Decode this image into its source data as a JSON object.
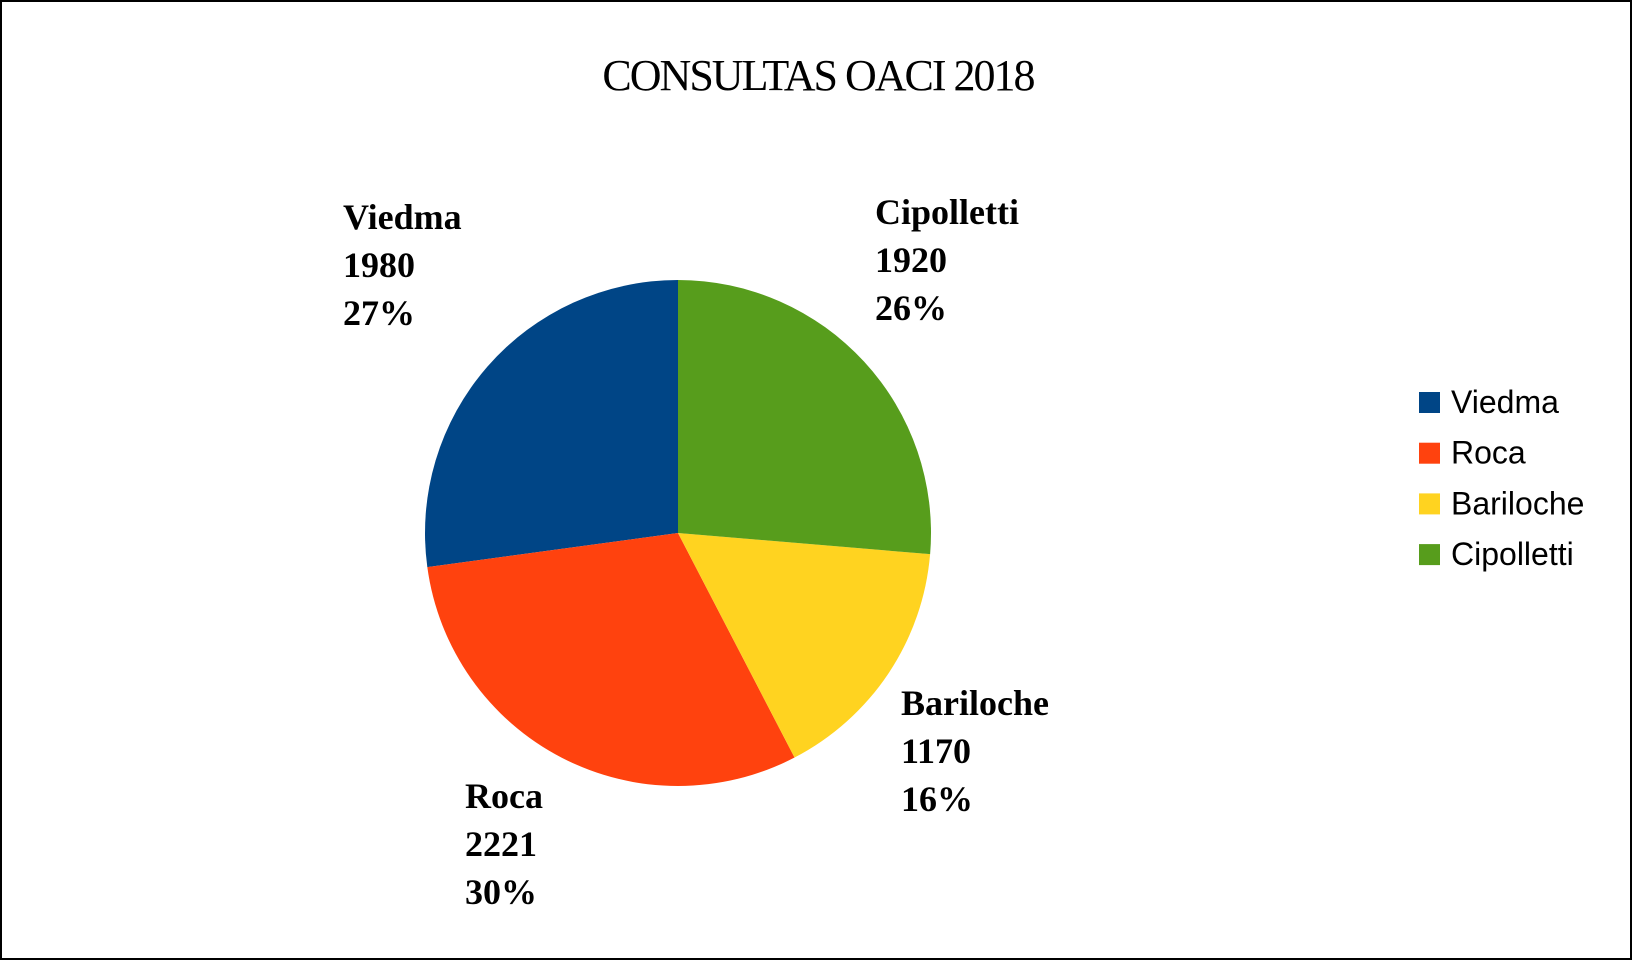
{
  "chart_data": {
    "type": "pie",
    "title": "CONSULTAS OACI 2018",
    "categories": [
      "Viedma",
      "Roca",
      "Bariloche",
      "Cipolletti"
    ],
    "values": [
      1980,
      2221,
      1170,
      1920
    ],
    "percent_labels": [
      "27%",
      "30%",
      "16%",
      "26%"
    ],
    "colors": [
      "#004586",
      "#ff420e",
      "#ffd320",
      "#579d1c"
    ],
    "legend": "right"
  }
}
